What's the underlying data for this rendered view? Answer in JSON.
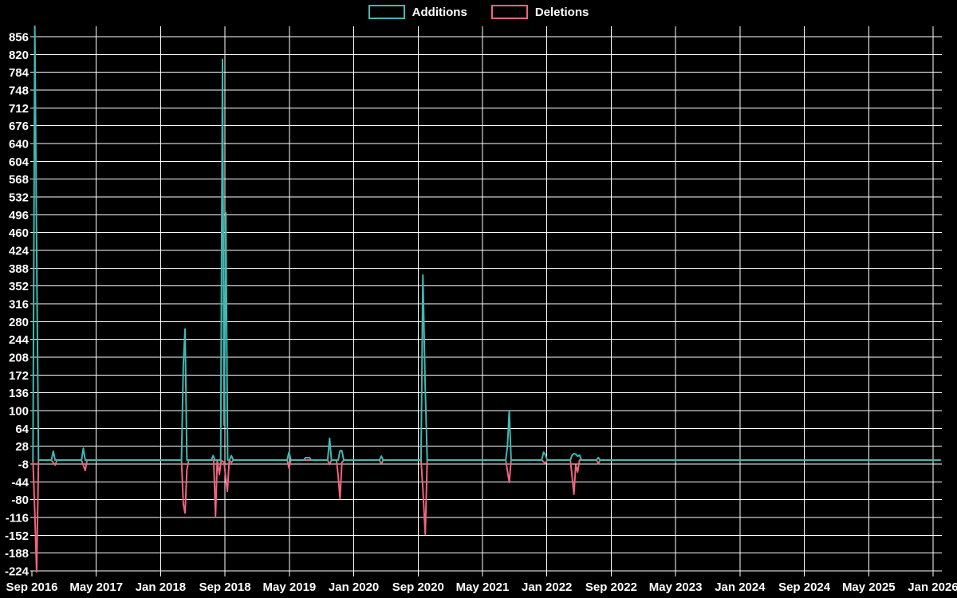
{
  "colors": {
    "background": "#000000",
    "grid": "#ffffff",
    "text": "#ffffff",
    "additions": "#41b8b2",
    "deletions": "#f0657e"
  },
  "legend": {
    "items": [
      {
        "label": "Additions",
        "color": "#41b8b2"
      },
      {
        "label": "Deletions",
        "color": "#f0657e"
      }
    ]
  },
  "chart_data": {
    "type": "line",
    "title": "",
    "xlabel": "",
    "ylabel": "",
    "grid": true,
    "legend_position": "top-center",
    "x_axis": {
      "tick_labels": [
        "Sep 2016",
        "May 2017",
        "Jan 2018",
        "Sep 2018",
        "May 2019",
        "Jan 2020",
        "Sep 2020",
        "May 2021",
        "Jan 2022",
        "Sep 2022",
        "May 2023",
        "Jan 2024",
        "Sep 2024",
        "May 2025",
        "Jan 2026"
      ],
      "months_per_tick": 8,
      "start": "2016-09-01",
      "end": "2026-02-01"
    },
    "y_axis": {
      "ticks": [
        856,
        820,
        784,
        748,
        712,
        676,
        640,
        604,
        568,
        532,
        496,
        460,
        424,
        388,
        352,
        316,
        280,
        244,
        208,
        172,
        136,
        100,
        64,
        28,
        -8,
        -44,
        -80,
        -116,
        -152,
        -188,
        -224
      ],
      "range": [
        -226,
        877
      ]
    },
    "series": [
      {
        "name": "Additions",
        "color": "#41b8b2",
        "points": [
          [
            "2016-09-05",
            0
          ],
          [
            "2016-09-12",
            877
          ],
          [
            "2016-09-19",
            422
          ],
          [
            "2016-09-26",
            0
          ],
          [
            "2016-11-14",
            0
          ],
          [
            "2016-11-21",
            18
          ],
          [
            "2016-11-28",
            0
          ],
          [
            "2017-03-06",
            0
          ],
          [
            "2017-03-13",
            24
          ],
          [
            "2017-03-20",
            0
          ],
          [
            "2018-03-19",
            0
          ],
          [
            "2018-03-26",
            194
          ],
          [
            "2018-04-02",
            265
          ],
          [
            "2018-04-09",
            0
          ],
          [
            "2018-07-10",
            0
          ],
          [
            "2018-07-17",
            9
          ],
          [
            "2018-07-24",
            0
          ],
          [
            "2018-08-15",
            0
          ],
          [
            "2018-08-22",
            810
          ],
          [
            "2018-08-28",
            71
          ],
          [
            "2018-09-04",
            500
          ],
          [
            "2018-09-11",
            0
          ],
          [
            "2018-09-18",
            0
          ],
          [
            "2018-09-25",
            9
          ],
          [
            "2018-10-02",
            0
          ],
          [
            "2019-04-23",
            0
          ],
          [
            "2019-04-30",
            16
          ],
          [
            "2019-05-07",
            0
          ],
          [
            "2019-06-25",
            0
          ],
          [
            "2019-07-02",
            5
          ],
          [
            "2019-07-16",
            5
          ],
          [
            "2019-07-23",
            0
          ],
          [
            "2019-09-24",
            0
          ],
          [
            "2019-10-01",
            44
          ],
          [
            "2019-10-08",
            0
          ],
          [
            "2019-11-03",
            0
          ],
          [
            "2019-11-10",
            19
          ],
          [
            "2019-11-17",
            19
          ],
          [
            "2019-11-24",
            0
          ],
          [
            "2020-04-07",
            0
          ],
          [
            "2020-04-14",
            8
          ],
          [
            "2020-04-21",
            0
          ],
          [
            "2020-09-12",
            0
          ],
          [
            "2020-09-19",
            374
          ],
          [
            "2020-09-28",
            145
          ],
          [
            "2020-10-05",
            0
          ],
          [
            "2021-07-28",
            0
          ],
          [
            "2021-08-04",
            27
          ],
          [
            "2021-08-11",
            100
          ],
          [
            "2021-08-18",
            0
          ],
          [
            "2021-12-12",
            0
          ],
          [
            "2021-12-19",
            16
          ],
          [
            "2021-12-26",
            11
          ],
          [
            "2022-01-02",
            0
          ],
          [
            "2022-03-29",
            0
          ],
          [
            "2022-04-05",
            10
          ],
          [
            "2022-04-12",
            13
          ],
          [
            "2022-04-19",
            12
          ],
          [
            "2022-04-26",
            8
          ],
          [
            "2022-05-03",
            10
          ],
          [
            "2022-05-10",
            0
          ],
          [
            "2022-07-06",
            0
          ],
          [
            "2022-07-13",
            5
          ],
          [
            "2022-07-20",
            0
          ],
          [
            "2026-01-28",
            0
          ]
        ]
      },
      {
        "name": "Deletions",
        "color": "#f0657e",
        "points": [
          [
            "2016-09-05",
            0
          ],
          [
            "2016-09-12",
            -107
          ],
          [
            "2016-09-19",
            -226
          ],
          [
            "2016-09-26",
            0
          ],
          [
            "2016-11-14",
            0
          ],
          [
            "2016-11-28",
            -10
          ],
          [
            "2016-12-05",
            0
          ],
          [
            "2017-03-06",
            0
          ],
          [
            "2017-03-20",
            -21
          ],
          [
            "2017-03-27",
            0
          ],
          [
            "2018-03-19",
            0
          ],
          [
            "2018-03-26",
            -89
          ],
          [
            "2018-04-02",
            -107
          ],
          [
            "2018-04-09",
            -20
          ],
          [
            "2018-04-16",
            0
          ],
          [
            "2018-07-19",
            0
          ],
          [
            "2018-07-26",
            -113
          ],
          [
            "2018-08-02",
            0
          ],
          [
            "2018-08-10",
            -29
          ],
          [
            "2018-08-17",
            0
          ],
          [
            "2018-08-28",
            -5
          ],
          [
            "2018-09-04",
            -37
          ],
          [
            "2018-09-10",
            -63
          ],
          [
            "2018-09-17",
            0
          ],
          [
            "2018-09-25",
            -5
          ],
          [
            "2018-10-02",
            0
          ],
          [
            "2019-04-23",
            0
          ],
          [
            "2019-04-30",
            -16
          ],
          [
            "2019-05-07",
            0
          ],
          [
            "2019-09-24",
            0
          ],
          [
            "2019-10-01",
            -9
          ],
          [
            "2019-10-08",
            0
          ],
          [
            "2019-10-27",
            0
          ],
          [
            "2019-11-03",
            -32
          ],
          [
            "2019-11-10",
            -78
          ],
          [
            "2019-11-17",
            -5
          ],
          [
            "2019-11-24",
            0
          ],
          [
            "2020-04-07",
            0
          ],
          [
            "2020-04-14",
            -8
          ],
          [
            "2020-04-21",
            0
          ],
          [
            "2020-09-12",
            0
          ],
          [
            "2020-09-19",
            -58
          ],
          [
            "2020-09-28",
            -150
          ],
          [
            "2020-10-05",
            0
          ],
          [
            "2021-07-28",
            0
          ],
          [
            "2021-08-11",
            -45
          ],
          [
            "2021-08-18",
            0
          ],
          [
            "2021-12-12",
            0
          ],
          [
            "2021-12-26",
            -7
          ],
          [
            "2022-01-02",
            0
          ],
          [
            "2022-03-29",
            0
          ],
          [
            "2022-04-05",
            -32
          ],
          [
            "2022-04-12",
            -69
          ],
          [
            "2022-04-19",
            -10
          ],
          [
            "2022-04-26",
            -24
          ],
          [
            "2022-05-03",
            0
          ],
          [
            "2022-07-06",
            0
          ],
          [
            "2022-07-13",
            -7
          ],
          [
            "2022-07-20",
            0
          ],
          [
            "2026-01-28",
            0
          ]
        ]
      }
    ]
  }
}
